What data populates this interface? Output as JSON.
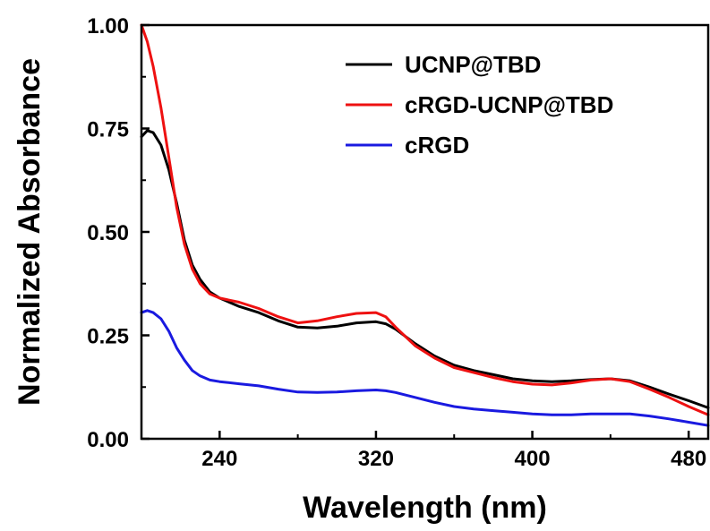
{
  "chart_data": {
    "type": "line",
    "title": "",
    "xlabel": "Wavelength (nm)",
    "ylabel": "Normalized Absorbance",
    "xlim": [
      200,
      490
    ],
    "ylim": [
      0,
      1.0
    ],
    "xticks": [
      240,
      320,
      400,
      480
    ],
    "xtick_labels": [
      "240",
      "320",
      "400",
      "480"
    ],
    "yticks": [
      0,
      0.25,
      0.5,
      0.75,
      1.0
    ],
    "ytick_labels": [
      "0.00",
      "0.25",
      "0.50",
      "0.75",
      "1.00"
    ],
    "grid": false,
    "legend_position": "top-right",
    "series": [
      {
        "name": "UCNP@TBD",
        "color": "#000000",
        "x": [
          200,
          203,
          206,
          210,
          214,
          218,
          222,
          226,
          230,
          235,
          240,
          250,
          260,
          270,
          280,
          290,
          300,
          310,
          320,
          325,
          330,
          340,
          350,
          360,
          370,
          380,
          390,
          400,
          410,
          420,
          430,
          440,
          450,
          460,
          470,
          480,
          490
        ],
        "y": [
          0.73,
          0.745,
          0.74,
          0.71,
          0.65,
          0.57,
          0.48,
          0.42,
          0.385,
          0.355,
          0.34,
          0.32,
          0.305,
          0.285,
          0.27,
          0.268,
          0.272,
          0.28,
          0.283,
          0.278,
          0.265,
          0.23,
          0.2,
          0.178,
          0.165,
          0.155,
          0.145,
          0.14,
          0.138,
          0.14,
          0.143,
          0.145,
          0.14,
          0.125,
          0.108,
          0.092,
          0.075
        ]
      },
      {
        "name": "cRGD-UCNP@TBD",
        "color": "#ee1111",
        "x": [
          200,
          203,
          206,
          210,
          214,
          218,
          222,
          226,
          230,
          235,
          240,
          250,
          260,
          270,
          280,
          290,
          300,
          310,
          320,
          325,
          330,
          340,
          350,
          360,
          370,
          380,
          390,
          400,
          410,
          420,
          430,
          440,
          450,
          460,
          470,
          480,
          490
        ],
        "y": [
          1.0,
          0.96,
          0.9,
          0.8,
          0.68,
          0.56,
          0.47,
          0.41,
          0.375,
          0.35,
          0.34,
          0.33,
          0.315,
          0.295,
          0.28,
          0.285,
          0.295,
          0.303,
          0.305,
          0.295,
          0.27,
          0.225,
          0.195,
          0.172,
          0.16,
          0.148,
          0.138,
          0.132,
          0.13,
          0.135,
          0.142,
          0.145,
          0.138,
          0.12,
          0.1,
          0.078,
          0.058
        ]
      },
      {
        "name": "cRGD",
        "color": "#1a1ae0",
        "x": [
          200,
          203,
          206,
          210,
          214,
          218,
          222,
          226,
          230,
          235,
          240,
          250,
          260,
          270,
          280,
          290,
          300,
          310,
          320,
          325,
          330,
          340,
          350,
          360,
          370,
          380,
          390,
          400,
          410,
          420,
          430,
          440,
          450,
          460,
          470,
          480,
          490
        ],
        "y": [
          0.305,
          0.31,
          0.305,
          0.29,
          0.26,
          0.22,
          0.19,
          0.165,
          0.152,
          0.142,
          0.138,
          0.133,
          0.128,
          0.12,
          0.113,
          0.112,
          0.113,
          0.116,
          0.118,
          0.116,
          0.112,
          0.1,
          0.088,
          0.078,
          0.072,
          0.068,
          0.064,
          0.06,
          0.058,
          0.058,
          0.06,
          0.06,
          0.06,
          0.055,
          0.048,
          0.04,
          0.032
        ]
      }
    ]
  }
}
